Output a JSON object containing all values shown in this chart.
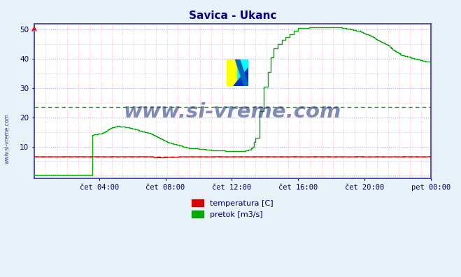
{
  "title": "Savica - Ukanc",
  "bg_color": "#e8f0f8",
  "plot_bg_color": "#ffffff",
  "xlim": [
    0,
    287
  ],
  "ylim": [
    -1,
    52
  ],
  "yticks": [
    10,
    20,
    30,
    40,
    50
  ],
  "xtick_labels": [
    "čet 04:00",
    "čet 08:00",
    "čet 12:00",
    "čet 16:00",
    "čet 20:00",
    "pet 00:00"
  ],
  "xtick_positions": [
    47,
    95,
    143,
    191,
    239,
    287
  ],
  "temp_color": "#dd0000",
  "flow_color": "#00aa00",
  "temp_avg_line": 6.5,
  "flow_avg_line": 23.5,
  "watermark": "www.si-vreme.com",
  "watermark_color": "#1a2e7a",
  "legend_temp": "temperatura [C]",
  "legend_flow": "pretok [m3/s]",
  "vgrid_color": "#ffaaaa",
  "hgrid_color": "#aaaadd",
  "axis_color": "#3333aa",
  "font_color": "#000066",
  "title_color": "#000088",
  "side_label": "www.si-vreme.com"
}
